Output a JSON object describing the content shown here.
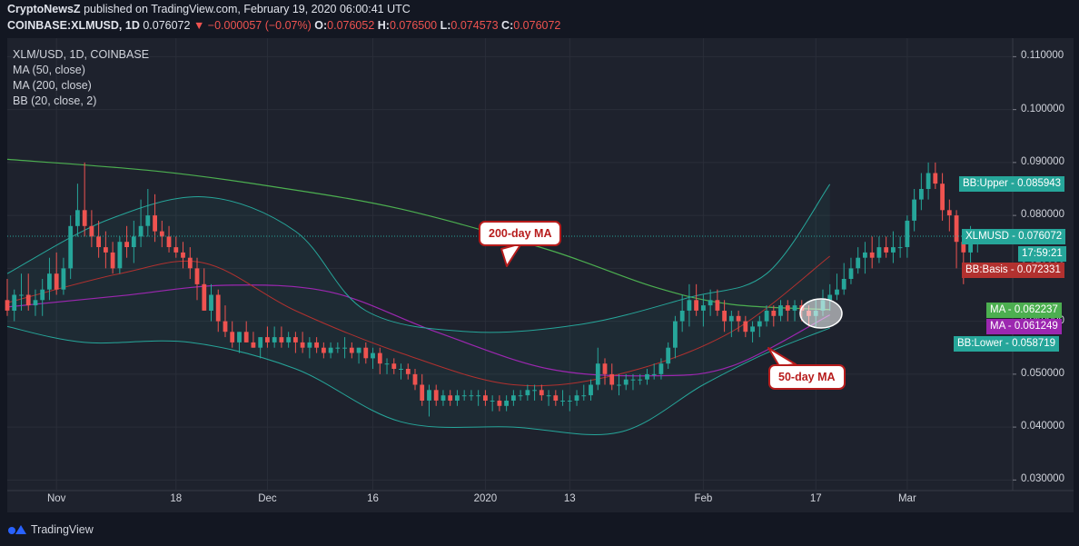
{
  "header": {
    "publisher": "CryptoNewsZ",
    "published_text": "published on TradingView.com, February 19, 2020 06:00:41 UTC",
    "symbol": "COINBASE:XLMUSD, 1D",
    "last": "0.076072",
    "change": "▼ −0.000057 (−0.07%)",
    "o_label": "O:",
    "o": "0.076052",
    "h_label": "H:",
    "h": "0.076500",
    "l_label": "L:",
    "l": "0.074573",
    "c_label": "C:",
    "c": "0.076072"
  },
  "legend": {
    "title": "XLM/USD, 1D, COINBASE",
    "ma50": "MA (50, close)",
    "ma200": "MA (200, close)",
    "bb": "BB (20, close, 2)"
  },
  "badges": {
    "bb_upper": "BB:Upper - 0.085943",
    "price": "XLMUSD - 0.076072",
    "countdown": "17:59:21",
    "bb_basis": "BB:Basis - 0.072331",
    "ma_a": "MA - 0.062237",
    "ma_b": "MA - 0.061249",
    "bb_lower": "BB:Lower - 0.058719"
  },
  "annotations": {
    "ma200_label": "200-day MA",
    "ma50_label": "50-day MA"
  },
  "footer": {
    "brand": "TradingView"
  },
  "colors": {
    "background": "#131722",
    "panel": "#1e222d",
    "up": "#26a69a",
    "down": "#ef5350",
    "ma200": "#4caf50",
    "ma50": "#9c27b0",
    "bb_band": "#26a69a",
    "bb_basis": "#b2312f"
  },
  "chart_data": {
    "type": "candlestick",
    "symbol": "XLMUSD",
    "interval": "1D",
    "ylim": [
      0.028,
      0.1135
    ],
    "y_ticks": [
      "0.110000",
      "0.100000",
      "0.090000",
      "0.080000",
      "0.070000",
      "0.060000",
      "0.050000",
      "0.040000",
      "0.030000"
    ],
    "x_ticks": [
      "Nov",
      "18",
      "Dec",
      "16",
      "2020",
      "13",
      "Feb",
      "17",
      "Mar"
    ],
    "x_tick_dates": [
      "2019-11-01",
      "2019-11-18",
      "2019-12-01",
      "2019-12-16",
      "2020-01-01",
      "2020-01-13",
      "2020-02-01",
      "2020-02-17",
      "2020-03-01"
    ],
    "x_range": [
      "2019-10-25",
      "2020-03-16"
    ],
    "candles": {
      "start_date": "2019-10-25",
      "open": [
        0.064,
        0.062,
        0.065,
        0.065,
        0.063,
        0.064,
        0.066,
        0.069,
        0.066,
        0.07,
        0.078,
        0.081,
        0.078,
        0.076,
        0.074,
        0.073,
        0.07,
        0.075,
        0.074,
        0.076,
        0.078,
        0.08,
        0.077,
        0.076,
        0.074,
        0.073,
        0.072,
        0.07,
        0.067,
        0.062,
        0.065,
        0.06,
        0.058,
        0.056,
        0.058,
        0.056,
        0.055,
        0.057,
        0.056,
        0.057,
        0.056,
        0.057,
        0.056,
        0.055,
        0.056,
        0.055,
        0.054,
        0.055,
        0.055,
        0.055,
        0.054,
        0.055,
        0.053,
        0.054,
        0.052,
        0.052,
        0.051,
        0.051,
        0.05,
        0.048,
        0.045,
        0.047,
        0.045,
        0.046,
        0.045,
        0.046,
        0.046,
        0.046,
        0.046,
        0.045,
        0.045,
        0.044,
        0.045,
        0.046,
        0.046,
        0.047,
        0.047,
        0.046,
        0.046,
        0.045,
        0.045,
        0.045,
        0.046,
        0.046,
        0.048,
        0.052,
        0.05,
        0.048,
        0.048,
        0.049,
        0.049,
        0.049,
        0.05,
        0.05,
        0.052,
        0.055,
        0.06,
        0.062,
        0.064,
        0.062,
        0.063,
        0.064,
        0.062,
        0.06,
        0.061,
        0.06,
        0.058,
        0.059,
        0.06,
        0.062,
        0.061,
        0.063,
        0.062,
        0.063,
        0.062,
        0.061,
        0.062,
        0.064,
        0.065,
        0.066,
        0.068,
        0.07,
        0.072,
        0.073,
        0.072,
        0.074,
        0.073,
        0.074,
        0.074,
        0.079,
        0.083,
        0.085,
        0.088,
        0.086,
        0.081,
        0.08,
        0.075,
        0.073,
        0.076,
        0.0761
      ],
      "high": [
        0.068,
        0.066,
        0.069,
        0.069,
        0.066,
        0.068,
        0.072,
        0.073,
        0.072,
        0.08,
        0.086,
        0.09,
        0.081,
        0.079,
        0.077,
        0.075,
        0.076,
        0.078,
        0.079,
        0.083,
        0.085,
        0.084,
        0.079,
        0.078,
        0.076,
        0.075,
        0.074,
        0.072,
        0.07,
        0.067,
        0.066,
        0.063,
        0.06,
        0.058,
        0.06,
        0.058,
        0.057,
        0.059,
        0.059,
        0.059,
        0.058,
        0.058,
        0.058,
        0.057,
        0.057,
        0.056,
        0.056,
        0.056,
        0.057,
        0.056,
        0.055,
        0.056,
        0.055,
        0.055,
        0.053,
        0.053,
        0.052,
        0.052,
        0.051,
        0.05,
        0.048,
        0.048,
        0.047,
        0.047,
        0.047,
        0.047,
        0.047,
        0.047,
        0.047,
        0.046,
        0.046,
        0.046,
        0.047,
        0.047,
        0.048,
        0.048,
        0.048,
        0.047,
        0.047,
        0.047,
        0.046,
        0.047,
        0.048,
        0.049,
        0.055,
        0.053,
        0.052,
        0.05,
        0.05,
        0.05,
        0.05,
        0.051,
        0.052,
        0.053,
        0.056,
        0.061,
        0.065,
        0.067,
        0.067,
        0.065,
        0.066,
        0.066,
        0.064,
        0.062,
        0.062,
        0.061,
        0.06,
        0.061,
        0.063,
        0.063,
        0.064,
        0.064,
        0.064,
        0.064,
        0.063,
        0.064,
        0.066,
        0.067,
        0.069,
        0.071,
        0.072,
        0.074,
        0.075,
        0.076,
        0.076,
        0.076,
        0.077,
        0.076,
        0.08,
        0.085,
        0.088,
        0.09,
        0.09,
        0.088,
        0.083,
        0.081,
        0.077,
        0.078,
        0.0771,
        0.0765
      ],
      "low": [
        0.061,
        0.06,
        0.062,
        0.062,
        0.061,
        0.061,
        0.064,
        0.065,
        0.065,
        0.068,
        0.076,
        0.076,
        0.074,
        0.072,
        0.07,
        0.069,
        0.069,
        0.072,
        0.071,
        0.074,
        0.076,
        0.075,
        0.074,
        0.073,
        0.072,
        0.07,
        0.068,
        0.064,
        0.062,
        0.06,
        0.058,
        0.057,
        0.055,
        0.054,
        0.056,
        0.055,
        0.053,
        0.055,
        0.055,
        0.055,
        0.055,
        0.054,
        0.054,
        0.053,
        0.054,
        0.053,
        0.053,
        0.054,
        0.053,
        0.053,
        0.052,
        0.052,
        0.051,
        0.05,
        0.05,
        0.05,
        0.049,
        0.049,
        0.047,
        0.044,
        0.042,
        0.044,
        0.044,
        0.044,
        0.044,
        0.045,
        0.045,
        0.044,
        0.044,
        0.043,
        0.043,
        0.043,
        0.044,
        0.045,
        0.045,
        0.045,
        0.045,
        0.044,
        0.044,
        0.044,
        0.043,
        0.044,
        0.045,
        0.045,
        0.047,
        0.048,
        0.047,
        0.046,
        0.047,
        0.047,
        0.048,
        0.048,
        0.049,
        0.049,
        0.051,
        0.053,
        0.058,
        0.059,
        0.061,
        0.059,
        0.061,
        0.061,
        0.058,
        0.057,
        0.058,
        0.057,
        0.056,
        0.057,
        0.059,
        0.059,
        0.06,
        0.06,
        0.06,
        0.06,
        0.059,
        0.059,
        0.061,
        0.062,
        0.064,
        0.065,
        0.067,
        0.069,
        0.069,
        0.07,
        0.071,
        0.072,
        0.071,
        0.072,
        0.072,
        0.077,
        0.081,
        0.083,
        0.085,
        0.079,
        0.077,
        0.07,
        0.067,
        0.071,
        0.073,
        0.0746
      ],
      "close": [
        0.062,
        0.065,
        0.065,
        0.063,
        0.064,
        0.066,
        0.069,
        0.066,
        0.07,
        0.078,
        0.081,
        0.078,
        0.076,
        0.074,
        0.073,
        0.07,
        0.075,
        0.074,
        0.076,
        0.078,
        0.08,
        0.077,
        0.076,
        0.074,
        0.073,
        0.072,
        0.07,
        0.067,
        0.062,
        0.065,
        0.06,
        0.058,
        0.056,
        0.058,
        0.056,
        0.055,
        0.057,
        0.056,
        0.057,
        0.056,
        0.057,
        0.056,
        0.055,
        0.056,
        0.055,
        0.054,
        0.055,
        0.055,
        0.055,
        0.054,
        0.055,
        0.053,
        0.054,
        0.052,
        0.052,
        0.051,
        0.051,
        0.05,
        0.048,
        0.045,
        0.047,
        0.045,
        0.046,
        0.045,
        0.046,
        0.046,
        0.046,
        0.046,
        0.045,
        0.045,
        0.044,
        0.045,
        0.046,
        0.046,
        0.047,
        0.047,
        0.046,
        0.046,
        0.045,
        0.045,
        0.045,
        0.046,
        0.046,
        0.048,
        0.052,
        0.05,
        0.048,
        0.048,
        0.049,
        0.049,
        0.049,
        0.05,
        0.05,
        0.052,
        0.055,
        0.06,
        0.062,
        0.064,
        0.062,
        0.063,
        0.064,
        0.062,
        0.06,
        0.061,
        0.06,
        0.058,
        0.059,
        0.06,
        0.062,
        0.061,
        0.063,
        0.062,
        0.063,
        0.062,
        0.061,
        0.062,
        0.064,
        0.065,
        0.066,
        0.068,
        0.07,
        0.072,
        0.073,
        0.072,
        0.074,
        0.073,
        0.074,
        0.074,
        0.079,
        0.083,
        0.085,
        0.088,
        0.086,
        0.081,
        0.08,
        0.075,
        0.073,
        0.076,
        0.0761,
        0.0761
      ]
    },
    "series": [
      {
        "name": "MA (200, close)",
        "color": "#4caf50",
        "dates": [
          "2019-10-25",
          "2019-11-15",
          "2019-12-01",
          "2019-12-20",
          "2020-01-10",
          "2020-01-25",
          "2020-02-05",
          "2020-02-19"
        ],
        "values": [
          0.0906,
          0.0884,
          0.0856,
          0.0812,
          0.0735,
          0.0665,
          0.0632,
          0.0622
        ]
      },
      {
        "name": "MA (50, close)",
        "color": "#9c27b0",
        "dates": [
          "2019-10-25",
          "2019-11-10",
          "2019-11-25",
          "2019-12-10",
          "2019-12-25",
          "2020-01-10",
          "2020-01-25",
          "2020-02-05",
          "2020-02-19"
        ],
        "values": [
          0.0627,
          0.0648,
          0.0668,
          0.0655,
          0.058,
          0.051,
          0.0497,
          0.0515,
          0.0612
        ]
      },
      {
        "name": "BB:Upper",
        "color": "#26a69a",
        "dates": [
          "2019-10-25",
          "2019-11-08",
          "2019-11-22",
          "2019-12-05",
          "2019-12-15",
          "2019-12-30",
          "2020-01-15",
          "2020-01-30",
          "2020-02-10",
          "2020-02-19"
        ],
        "values": [
          0.069,
          0.079,
          0.0835,
          0.077,
          0.062,
          0.058,
          0.0595,
          0.0645,
          0.069,
          0.0859
        ]
      },
      {
        "name": "BB:Basis",
        "color": "#b2312f",
        "dates": [
          "2019-10-25",
          "2019-11-10",
          "2019-11-22",
          "2019-12-05",
          "2019-12-20",
          "2020-01-05",
          "2020-01-20",
          "2020-02-05",
          "2020-02-19"
        ],
        "values": [
          0.0635,
          0.069,
          0.071,
          0.062,
          0.054,
          0.048,
          0.05,
          0.058,
          0.0723
        ]
      },
      {
        "name": "BB:Lower",
        "color": "#26a69a",
        "dates": [
          "2019-10-25",
          "2019-11-05",
          "2019-11-20",
          "2019-12-05",
          "2019-12-20",
          "2020-01-05",
          "2020-01-20",
          "2020-02-01",
          "2020-02-10",
          "2020-02-19"
        ],
        "values": [
          0.059,
          0.056,
          0.056,
          0.051,
          0.041,
          0.04,
          0.039,
          0.048,
          0.054,
          0.0587
        ]
      }
    ],
    "last_price": 0.076072
  }
}
